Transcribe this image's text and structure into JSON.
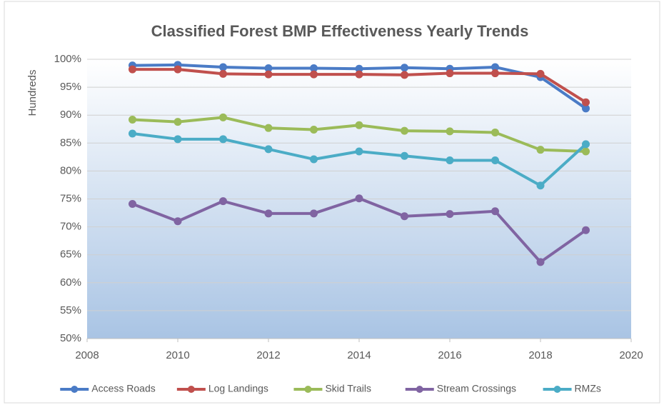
{
  "chart_data": {
    "type": "line",
    "title": "Classified Forest BMP Effectiveness Yearly Trends",
    "y_label": "Hundreds",
    "x": [
      2009,
      2010,
      2011,
      2012,
      2013,
      2014,
      2015,
      2016,
      2017,
      2018,
      2019
    ],
    "series": [
      {
        "name": "Access Roads",
        "color": "#4a7bc6",
        "values": [
          98.9,
          99.0,
          98.6,
          98.4,
          98.4,
          98.3,
          98.5,
          98.3,
          98.6,
          96.8,
          91.2
        ]
      },
      {
        "name": "Log Landings",
        "color": "#c0504d",
        "values": [
          98.2,
          98.2,
          97.4,
          97.3,
          97.3,
          97.3,
          97.2,
          97.5,
          97.5,
          97.4,
          92.3
        ]
      },
      {
        "name": "Skid Trails",
        "color": "#9bbb59",
        "values": [
          89.2,
          88.8,
          89.6,
          87.7,
          87.4,
          88.2,
          87.2,
          87.1,
          86.9,
          83.8,
          83.5
        ]
      },
      {
        "name": "Stream Crossings",
        "color": "#8064a2",
        "values": [
          74.1,
          71.0,
          74.6,
          72.4,
          72.4,
          75.1,
          71.9,
          72.3,
          72.8,
          63.7,
          69.4
        ]
      },
      {
        "name": "RMZs",
        "color": "#4bacc6",
        "values": [
          86.7,
          85.7,
          85.7,
          83.9,
          82.1,
          83.5,
          82.7,
          81.9,
          81.9,
          77.4,
          84.8
        ]
      }
    ],
    "xlim": [
      2008,
      2020
    ],
    "xticks": [
      2008,
      2010,
      2012,
      2014,
      2016,
      2018,
      2020
    ],
    "ylim": [
      50,
      100
    ],
    "yticks": [
      {
        "value": 50,
        "label": "50%"
      },
      {
        "value": 55,
        "label": "55%"
      },
      {
        "value": 60,
        "label": "60%"
      },
      {
        "value": 65,
        "label": "65%"
      },
      {
        "value": 70,
        "label": "70%"
      },
      {
        "value": 75,
        "label": "75%"
      },
      {
        "value": 80,
        "label": "80%"
      },
      {
        "value": 85,
        "label": "85%"
      },
      {
        "value": 90,
        "label": "90%"
      },
      {
        "value": 95,
        "label": "95%"
      },
      {
        "value": 100,
        "label": "100%"
      }
    ],
    "grid": true,
    "legend": "bottom"
  }
}
